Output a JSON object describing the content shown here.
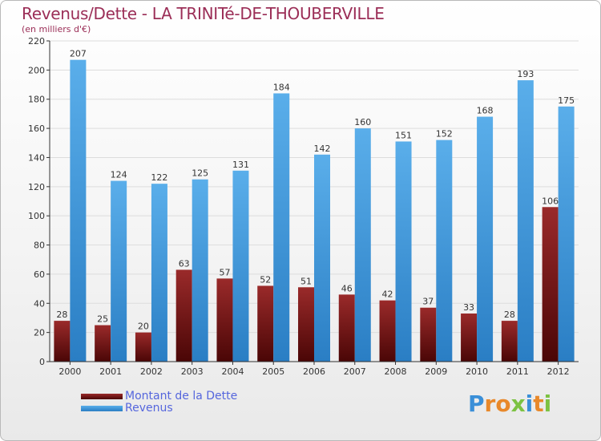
{
  "chart_data": {
    "type": "bar",
    "title": "Revenus/Dette - LA TRINITé-DE-THOUBERVILLE",
    "subtitle": "(en milliers d'€)",
    "categories": [
      "2000",
      "2001",
      "2002",
      "2003",
      "2004",
      "2005",
      "2006",
      "2007",
      "2008",
      "2009",
      "2010",
      "2011",
      "2012"
    ],
    "series": [
      {
        "name": "Montant de la Dette",
        "color": "#7a1a1a",
        "values": [
          28,
          25,
          20,
          63,
          57,
          52,
          51,
          46,
          42,
          37,
          33,
          28,
          106
        ]
      },
      {
        "name": "Revenus",
        "color": "#4a9ee0",
        "values": [
          207,
          124,
          122,
          125,
          131,
          184,
          142,
          160,
          151,
          152,
          168,
          193,
          175
        ]
      }
    ],
    "ylim": [
      0,
      220
    ],
    "yticks": [
      0,
      20,
      40,
      60,
      80,
      100,
      120,
      140,
      160,
      180,
      200,
      220
    ],
    "grid": true,
    "legend_position": "bottom-left"
  },
  "logo": {
    "text": "Proxiti",
    "letters": [
      "P",
      "r",
      "o",
      "x",
      "i",
      "t",
      "i"
    ],
    "colors": [
      "#3a8fd8",
      "#e8882a",
      "#e8882a",
      "#7cc242",
      "#3a8fd8",
      "#e8882a",
      "#7cc242"
    ]
  }
}
